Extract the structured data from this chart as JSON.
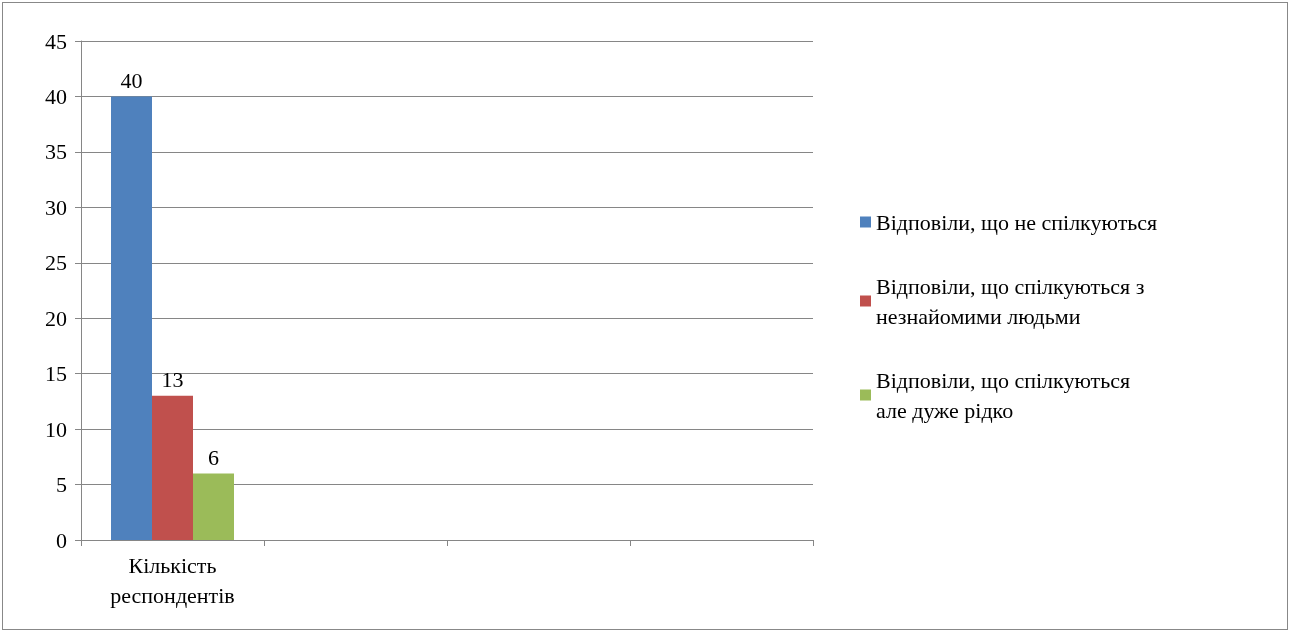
{
  "chart_data": {
    "type": "bar",
    "categories": [
      "Кількість респондентів",
      null,
      null,
      null
    ],
    "series": [
      {
        "name": "Відповіли, що не спілкуються",
        "color": "#4f81bd",
        "values": [
          40,
          null,
          null,
          null
        ]
      },
      {
        "name": "Відповіли, що спілкуються з незнайомими людьми",
        "color": "#c0504d",
        "values": [
          13,
          null,
          null,
          null
        ]
      },
      {
        "name": "Відповіли, що спілкуються але дуже рідко",
        "color": "#9bbb59",
        "values": [
          6,
          null,
          null,
          null
        ]
      }
    ],
    "ylim": [
      0,
      45
    ],
    "yticks": [
      0,
      5,
      10,
      15,
      20,
      25,
      30,
      35,
      40,
      45
    ],
    "grid": "y",
    "legend": "right",
    "data_labels": true
  }
}
